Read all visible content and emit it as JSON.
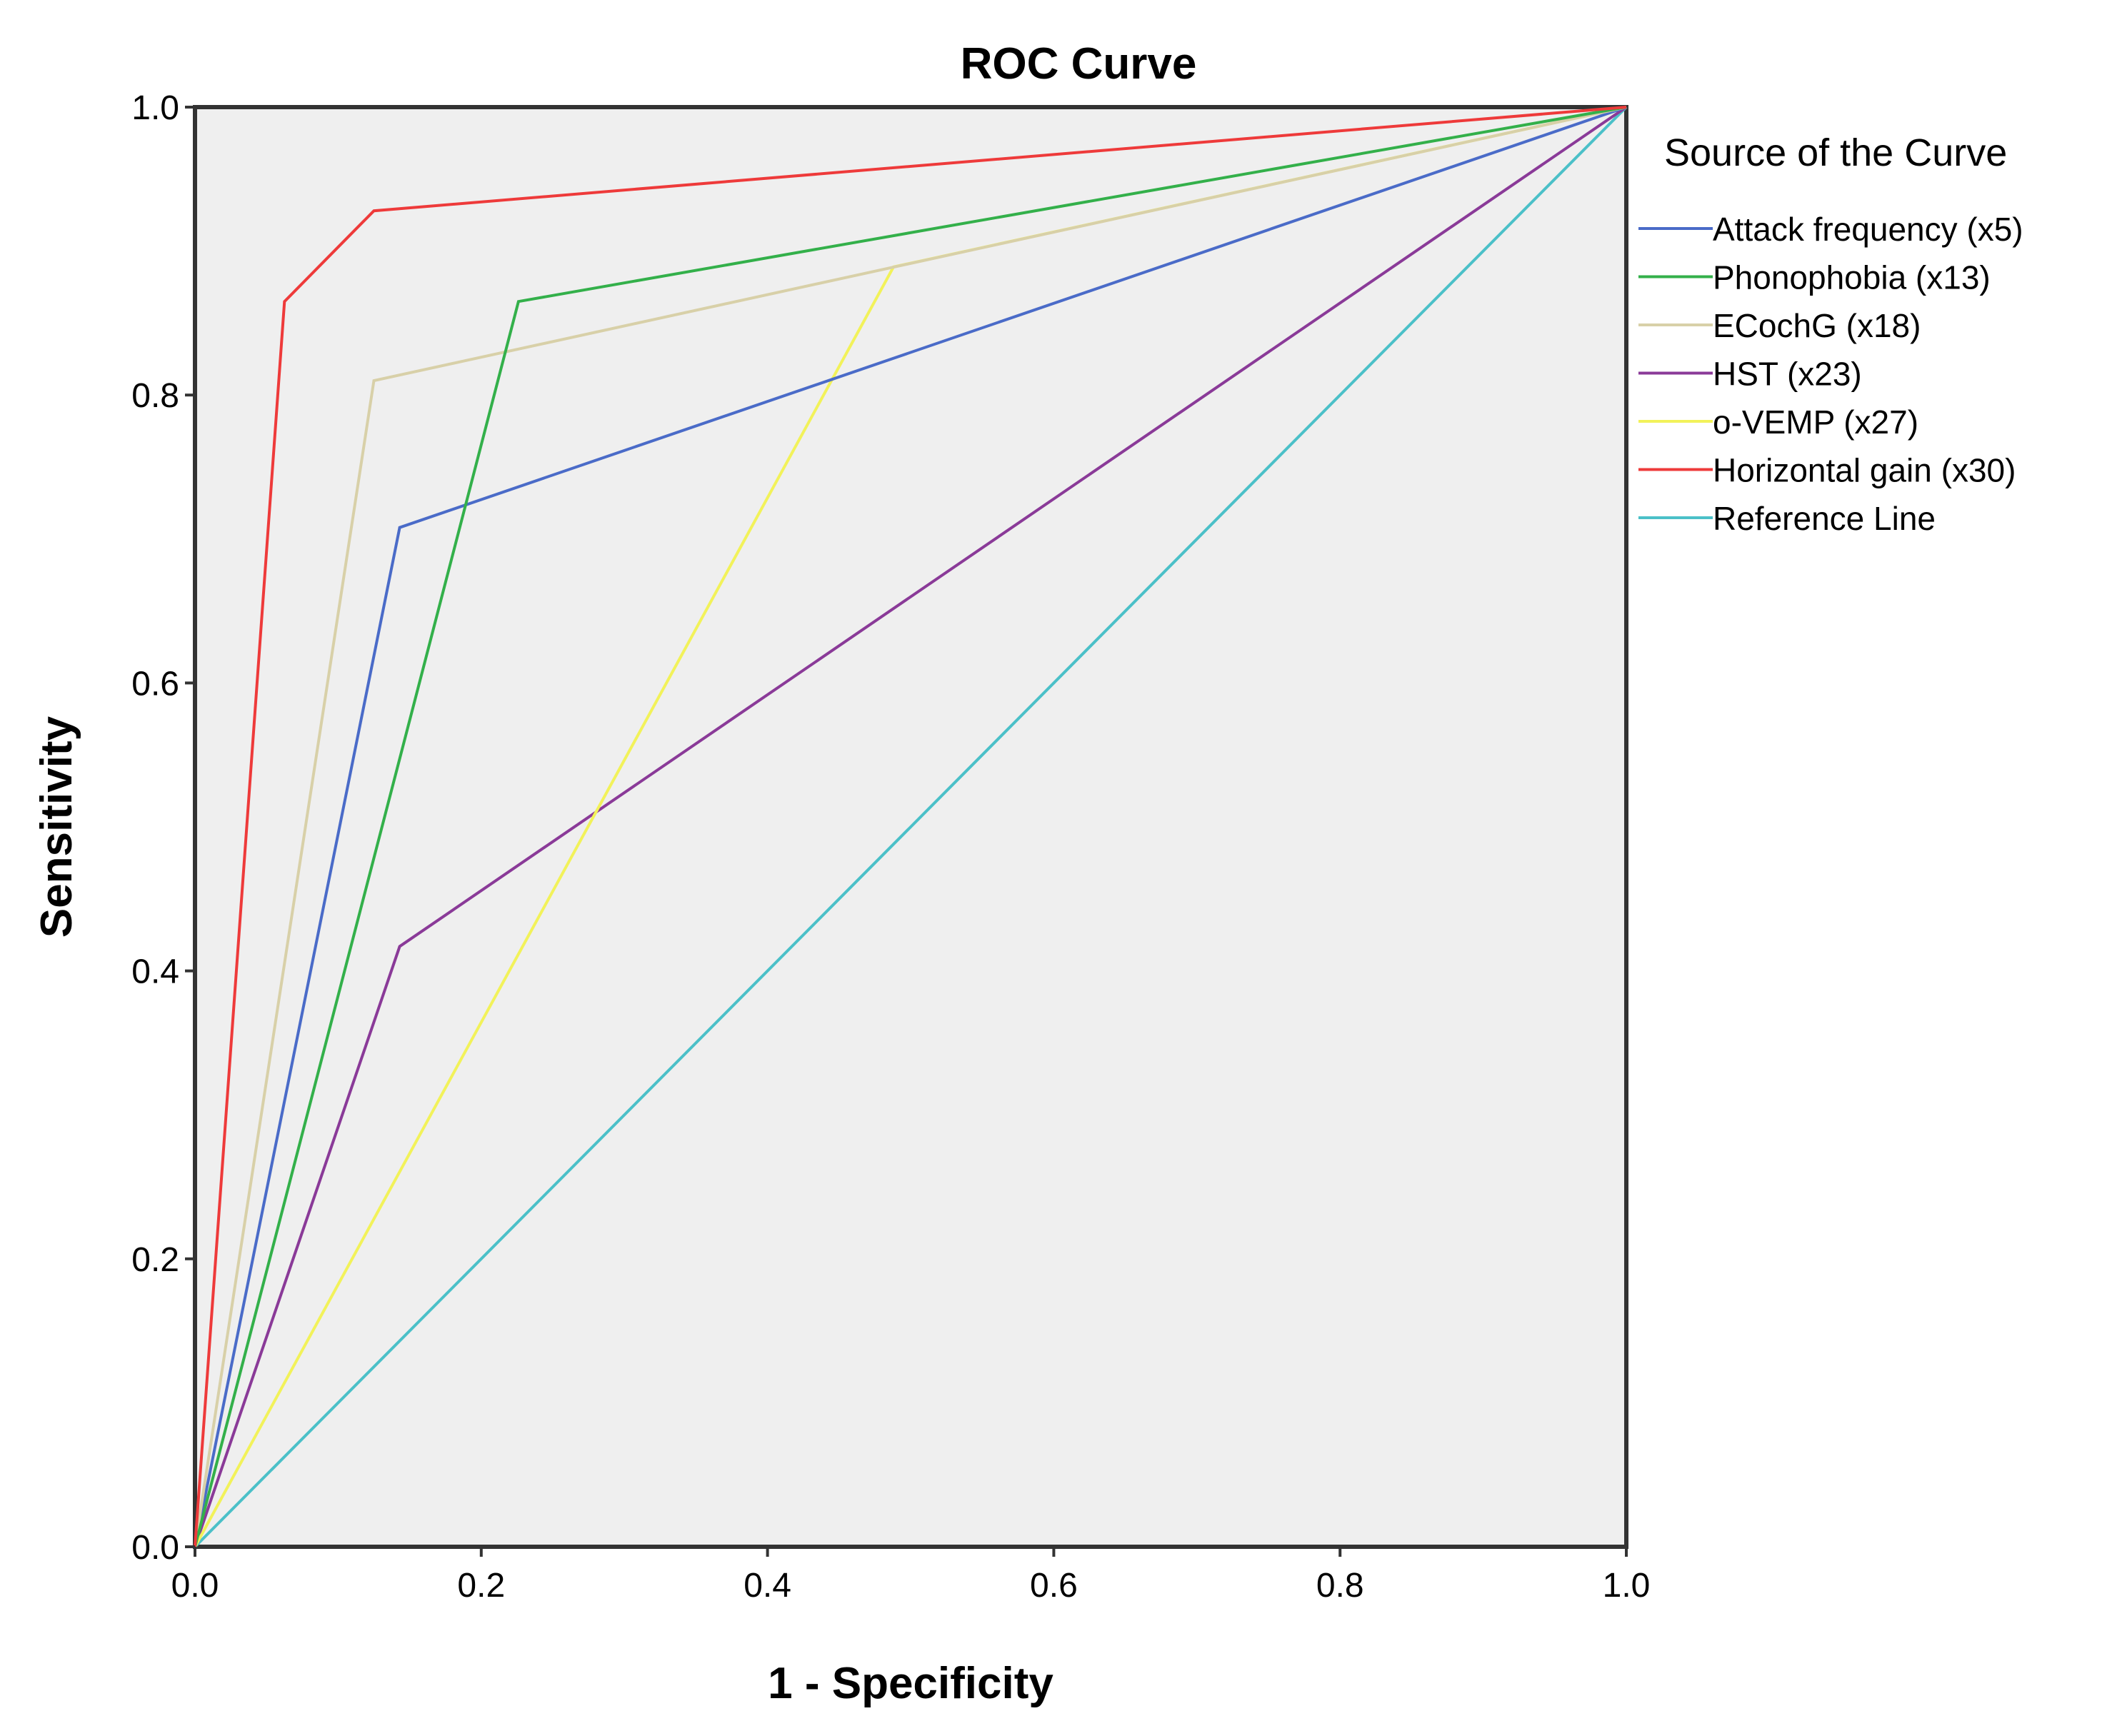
{
  "chart_data": {
    "type": "line",
    "title": "ROC Curve",
    "xlabel": "1 - Specificity",
    "ylabel": "Sensitivity",
    "xlim": [
      0,
      1
    ],
    "ylim": [
      0,
      1
    ],
    "xticks": [
      "0.0",
      "0.2",
      "0.4",
      "0.6",
      "0.8",
      "1.0"
    ],
    "yticks": [
      "0.0",
      "0.2",
      "0.4",
      "0.6",
      "0.8",
      "1.0"
    ],
    "grid": false,
    "legend_title": "Source of the Curve",
    "legend_position": "right",
    "series": [
      {
        "name": "Attack frequency (x5)",
        "color": "#4a6bc8",
        "x": [
          0.0,
          0.143,
          1.0
        ],
        "y": [
          0.0,
          0.708,
          1.0
        ]
      },
      {
        "name": "Phonophobia (x13)",
        "color": "#33b04a",
        "x": [
          0.0,
          0.226,
          1.0
        ],
        "y": [
          0.0,
          0.865,
          1.0
        ]
      },
      {
        "name": "ECochG (x18)",
        "color": "#d8d0a8",
        "x": [
          0.0,
          0.125,
          1.0
        ],
        "y": [
          0.0,
          0.81,
          1.0
        ]
      },
      {
        "name": "HST (x23)",
        "color": "#8a3a98",
        "x": [
          0.0,
          0.143,
          1.0
        ],
        "y": [
          0.0,
          0.417,
          1.0
        ]
      },
      {
        "name": "o-VEMP (x27)",
        "color": "#f2f25a",
        "x": [
          0.0,
          0.488,
          1.0
        ],
        "y": [
          0.0,
          0.889,
          1.0
        ]
      },
      {
        "name": "Horizontal gain (x30)",
        "color": "#ee3a3a",
        "x": [
          0.0,
          0.0625,
          0.125,
          1.0
        ],
        "y": [
          0.0,
          0.865,
          0.928,
          1.0
        ]
      },
      {
        "name": "Reference Line",
        "color": "#4bc0c8",
        "x": [
          0.0,
          1.0
        ],
        "y": [
          0.0,
          1.0
        ]
      }
    ]
  }
}
